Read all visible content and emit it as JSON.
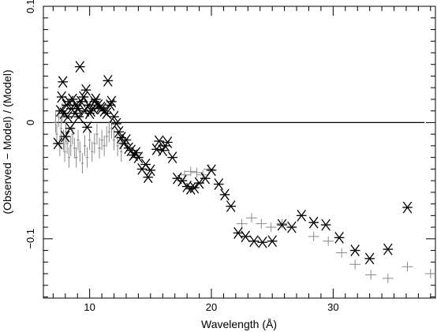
{
  "chart_data": {
    "type": "scatter",
    "title": "",
    "xlabel": "Wavelength (Å)",
    "ylabel": "(Observed − Model) / (Model)",
    "xlim": [
      6.2,
      38.4
    ],
    "ylim": [
      -0.151,
      0.1
    ],
    "xticks": [
      10,
      20,
      30
    ],
    "yticks": [
      -0.1,
      0,
      0.1
    ],
    "ytick_labels": [
      "−0.1",
      "0",
      "0.1"
    ],
    "grid": false,
    "legend": "none",
    "reference_line": {
      "y": 0,
      "x_range": [
        7.0,
        37.5
      ]
    },
    "series": [
      {
        "marker": "star",
        "color": "#000000",
        "points": [
          [
            7.4,
            -0.018
          ],
          [
            7.6,
            0.01
          ],
          [
            7.7,
            0.022
          ],
          [
            7.8,
            0.035
          ],
          [
            7.9,
            0.008
          ],
          [
            8.0,
            -0.012
          ],
          [
            8.1,
            0.015
          ],
          [
            8.2,
            0.005
          ],
          [
            8.3,
            0.018
          ],
          [
            8.4,
            -0.005
          ],
          [
            8.5,
            0.012
          ],
          [
            8.6,
            0.02
          ],
          [
            8.8,
            0.008
          ],
          [
            8.9,
            0.015
          ],
          [
            9.0,
            0.012
          ],
          [
            9.1,
            0.005
          ],
          [
            9.2,
            0.048
          ],
          [
            9.3,
            0.018
          ],
          [
            9.5,
            0.022
          ],
          [
            9.6,
            0.01
          ],
          [
            9.7,
            0.028
          ],
          [
            9.8,
            -0.004
          ],
          [
            9.9,
            0.015
          ],
          [
            10.0,
            0.008
          ],
          [
            10.1,
            0.01
          ],
          [
            10.3,
            0.012
          ],
          [
            10.4,
            0.018
          ],
          [
            10.5,
            0.02
          ],
          [
            10.7,
            0.015
          ],
          [
            10.9,
            0.013
          ],
          [
            11.0,
            0.012
          ],
          [
            11.2,
            0.01
          ],
          [
            11.4,
            0.008
          ],
          [
            11.5,
            0.036
          ],
          [
            11.7,
            0.015
          ],
          [
            11.8,
            0.018
          ],
          [
            12.0,
            0.005
          ],
          [
            12.2,
            -0.001
          ],
          [
            12.4,
            -0.008
          ],
          [
            12.6,
            -0.013
          ],
          [
            12.8,
            -0.018
          ],
          [
            13.0,
            -0.015
          ],
          [
            13.2,
            -0.022
          ],
          [
            13.4,
            -0.024
          ],
          [
            13.6,
            -0.028
          ],
          [
            13.8,
            -0.026
          ],
          [
            14.0,
            -0.03
          ],
          [
            14.3,
            -0.04
          ],
          [
            14.6,
            -0.036
          ],
          [
            14.8,
            -0.047
          ],
          [
            15.0,
            -0.041
          ],
          [
            15.5,
            -0.023
          ],
          [
            15.7,
            -0.016
          ],
          [
            16.0,
            -0.024
          ],
          [
            16.2,
            -0.02
          ],
          [
            16.4,
            -0.017
          ],
          [
            16.8,
            -0.03
          ],
          [
            17.2,
            -0.048
          ],
          [
            17.6,
            -0.05
          ],
          [
            18.0,
            -0.055
          ],
          [
            18.3,
            -0.057
          ],
          [
            18.6,
            -0.056
          ],
          [
            19.0,
            -0.052
          ],
          [
            19.5,
            -0.048
          ],
          [
            20.0,
            -0.041
          ],
          [
            20.6,
            -0.053
          ],
          [
            21.1,
            -0.062
          ],
          [
            21.6,
            -0.072
          ],
          [
            22.2,
            -0.095
          ],
          [
            22.8,
            -0.098
          ],
          [
            23.5,
            -0.102
          ],
          [
            24.2,
            -0.103
          ],
          [
            25.0,
            -0.102
          ],
          [
            25.8,
            -0.088
          ],
          [
            26.6,
            -0.09
          ],
          [
            27.4,
            -0.08
          ],
          [
            28.4,
            -0.086
          ],
          [
            29.4,
            -0.088
          ],
          [
            30.5,
            -0.099
          ],
          [
            31.8,
            -0.11
          ],
          [
            33.0,
            -0.117
          ],
          [
            34.5,
            -0.109
          ],
          [
            36.1,
            -0.073
          ]
        ]
      },
      {
        "marker": "cross",
        "color": "#888888",
        "points": [
          [
            7.2,
            0.0
          ],
          [
            7.3,
            -0.01
          ],
          [
            7.45,
            0.005
          ],
          [
            7.55,
            -0.02
          ],
          [
            7.65,
            -0.005
          ],
          [
            7.75,
            0.008
          ],
          [
            7.85,
            -0.015
          ],
          [
            7.95,
            -0.025
          ],
          [
            8.05,
            -0.008
          ],
          [
            8.15,
            -0.018
          ],
          [
            8.3,
            -0.03
          ],
          [
            8.45,
            -0.02
          ],
          [
            8.6,
            -0.01
          ],
          [
            8.75,
            -0.022
          ],
          [
            8.9,
            -0.03
          ],
          [
            9.05,
            -0.015
          ],
          [
            9.2,
            -0.025
          ],
          [
            9.4,
            -0.035
          ],
          [
            9.6,
            -0.02
          ],
          [
            9.8,
            -0.03
          ],
          [
            10.0,
            -0.015
          ],
          [
            10.2,
            -0.025
          ],
          [
            10.4,
            -0.018
          ],
          [
            10.6,
            -0.01
          ],
          [
            10.8,
            -0.022
          ],
          [
            11.0,
            -0.015
          ],
          [
            11.2,
            -0.02
          ],
          [
            11.4,
            -0.012
          ],
          [
            11.6,
            -0.008
          ],
          [
            11.8,
            -0.005
          ],
          [
            12.0,
            -0.015
          ],
          [
            12.3,
            -0.02
          ],
          [
            12.6,
            -0.025
          ],
          [
            17.8,
            -0.045
          ],
          [
            18.3,
            -0.042
          ],
          [
            18.8,
            -0.043
          ],
          [
            19.3,
            -0.045
          ],
          [
            19.8,
            -0.04
          ],
          [
            22.5,
            -0.087
          ],
          [
            23.3,
            -0.082
          ],
          [
            24.1,
            -0.087
          ],
          [
            24.9,
            -0.09
          ],
          [
            25.8,
            -0.087
          ],
          [
            28.4,
            -0.098
          ],
          [
            29.6,
            -0.102
          ],
          [
            30.7,
            -0.112
          ],
          [
            31.8,
            -0.122
          ],
          [
            33.1,
            -0.131
          ],
          [
            34.5,
            -0.134
          ],
          [
            36.1,
            -0.124
          ],
          [
            38.0,
            -0.13
          ]
        ]
      }
    ]
  }
}
